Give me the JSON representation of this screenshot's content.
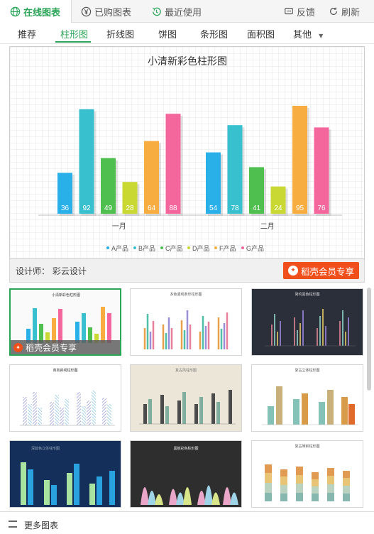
{
  "top_tabs": [
    {
      "label": "在线图表",
      "icon": "globe-icon"
    },
    {
      "label": "已购图表",
      "icon": "yen-icon"
    },
    {
      "label": "最近使用",
      "icon": "history-icon"
    }
  ],
  "top_actions": {
    "feedback": "反馈",
    "refresh": "刷新"
  },
  "sub_tabs": [
    "推荐",
    "柱形图",
    "折线图",
    "饼图",
    "条形图",
    "面积图",
    "其他"
  ],
  "active_sub_tab": "柱形图",
  "preview": {
    "designer_label": "设计师：  彩云设计",
    "vip_button": "稻壳会员专享"
  },
  "chart_data": {
    "type": "bar",
    "title": "小清新彩色柱形图",
    "categories": [
      "一月",
      "二月"
    ],
    "series": [
      {
        "name": "A产品",
        "color": "#29b0e8",
        "values": [
          36,
          54
        ]
      },
      {
        "name": "B产品",
        "color": "#39c0cf",
        "values": [
          92,
          78
        ]
      },
      {
        "name": "C产品",
        "color": "#4fbf4f",
        "values": [
          49,
          41
        ]
      },
      {
        "name": "D产品",
        "color": "#c9d833",
        "values": [
          28,
          24
        ]
      },
      {
        "name": "F产品",
        "color": "#f7ad3f",
        "values": [
          64,
          95
        ]
      },
      {
        "name": "G产品",
        "color": "#f3679c",
        "values": [
          88,
          76
        ]
      }
    ],
    "ylim": [
      0,
      100
    ],
    "grid": true,
    "legend": "bottom"
  },
  "gallery": {
    "thumbs": [
      {
        "title": "小清新彩色柱形图",
        "vip": "稻壳会员专享"
      },
      {
        "title": "多色竖线条形柱形图"
      },
      {
        "title": "简约黑色柱形图"
      },
      {
        "title": "商务斜线柱形图"
      },
      {
        "title": "复古风柱形图"
      },
      {
        "title": "复古立体柱形图"
      },
      {
        "title": "深蓝色立体柱形图"
      },
      {
        "title": "黑板彩色柱形图"
      },
      {
        "title": "复古堆积柱形图"
      }
    ]
  },
  "bottom": {
    "more": "更多图表"
  }
}
